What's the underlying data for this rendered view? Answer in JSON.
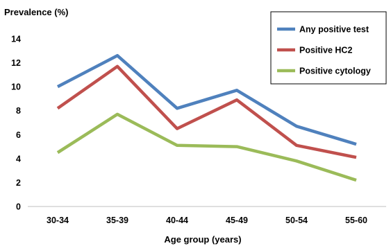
{
  "chart_data": {
    "type": "line",
    "title": "",
    "ylabel": "Prevalence (%)",
    "xlabel": "Age group (years)",
    "categories": [
      "30-34",
      "35-39",
      "40-44",
      "45-49",
      "50-54",
      "55-60"
    ],
    "ylim": [
      0,
      14
    ],
    "yticks": [
      0,
      2,
      4,
      6,
      8,
      10,
      12,
      14
    ],
    "grid": false,
    "legend_position": "top-right",
    "series": [
      {
        "name": "Any positive test",
        "color": "#4F81BD",
        "values": [
          10.0,
          12.6,
          8.2,
          9.7,
          6.7,
          5.2
        ]
      },
      {
        "name": "Positive  HC2",
        "color": "#C0504D",
        "values": [
          8.2,
          11.7,
          6.5,
          8.9,
          5.1,
          4.1
        ]
      },
      {
        "name": "Positive  cytology",
        "color": "#9BBB59",
        "values": [
          4.5,
          7.7,
          5.1,
          5.0,
          3.8,
          2.2
        ]
      }
    ]
  }
}
